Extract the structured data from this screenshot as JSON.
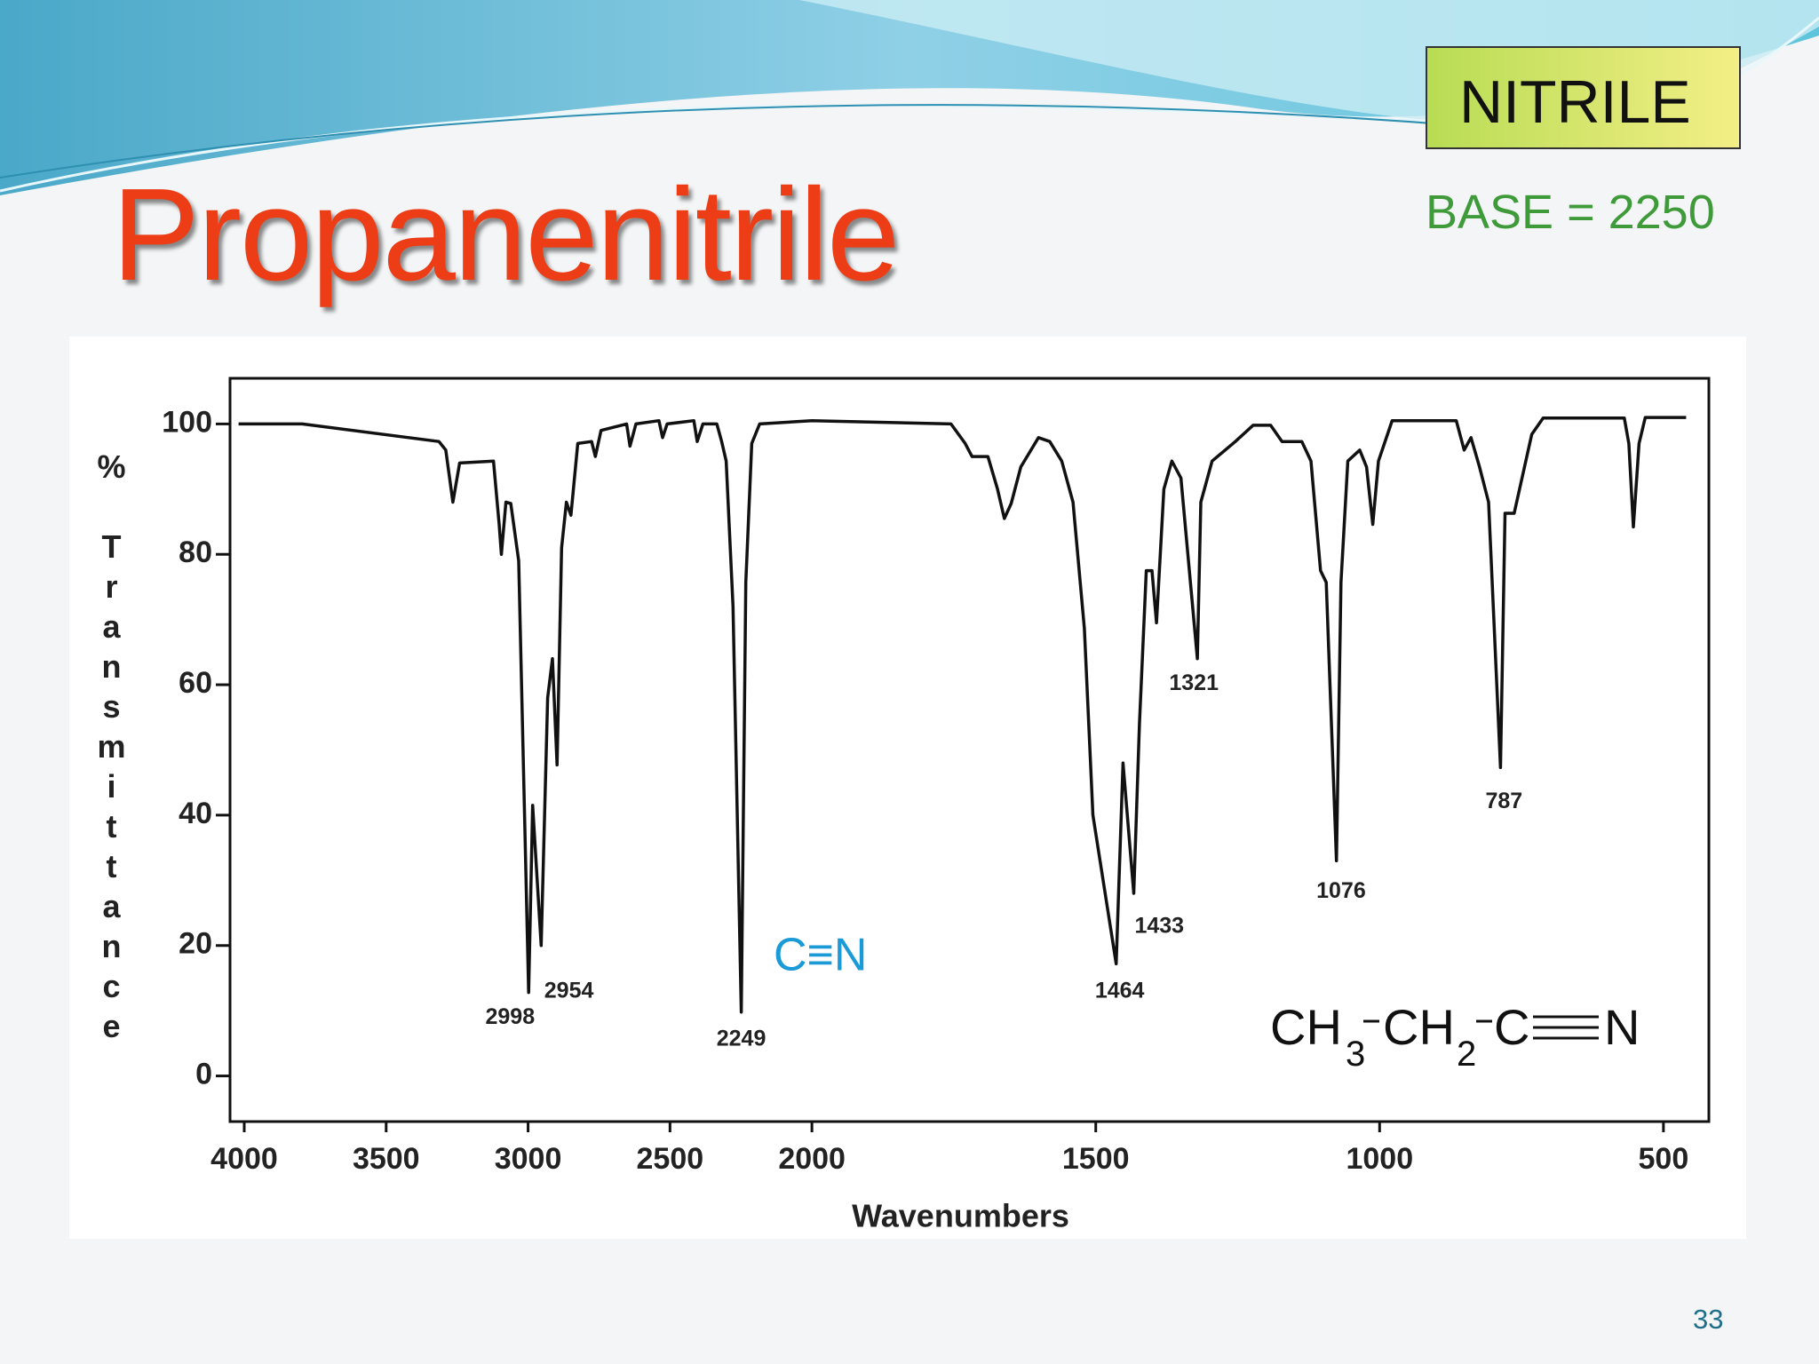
{
  "slide": {
    "title": "Propanenitrile",
    "badge": "NITRILE",
    "base": "BASE = 2250",
    "page": "33",
    "bond_note": "C≡N",
    "formula": [
      "CH",
      "3",
      "CH",
      "2",
      "C",
      "N"
    ]
  },
  "chart_data": {
    "type": "line",
    "x_label": "Wavenumbers",
    "y_label": "% Transmittance",
    "xlim": [
      4050,
      420
    ],
    "x_scale_break": 2000,
    "xticks": [
      4000,
      3500,
      3000,
      2500,
      2000,
      1500,
      1000,
      500
    ],
    "ylim": [
      -7,
      107
    ],
    "yticks": [
      0,
      20,
      40,
      60,
      80,
      100
    ],
    "color": "#111111",
    "x": [
      4020,
      3796,
      3314,
      3290,
      3265,
      3241,
      3122,
      3102,
      3094,
      3078,
      3061,
      3033,
      2998,
      2984,
      2954,
      2931,
      2914,
      2898,
      2882,
      2865,
      2849,
      2825,
      2776,
      2763,
      2743,
      2653,
      2641,
      2620,
      2539,
      2526,
      2510,
      2416,
      2404,
      2384,
      2335,
      2318,
      2302,
      2278,
      2249,
      2233,
      2212,
      2184,
      2000,
      1755,
      1730,
      1718,
      1690,
      1673,
      1661,
      1649,
      1632,
      1601,
      1581,
      1560,
      1540,
      1520,
      1505,
      1464,
      1452,
      1433,
      1423,
      1411,
      1401,
      1393,
      1380,
      1366,
      1350,
      1321,
      1315,
      1295,
      1254,
      1223,
      1192,
      1172,
      1137,
      1121,
      1104,
      1094,
      1076,
      1068,
      1056,
      1035,
      1023,
      1012,
      1002,
      978,
      865,
      851,
      839,
      824,
      808,
      787,
      779,
      763,
      732,
      712,
      569,
      561,
      553,
      543,
      532,
      460
    ],
    "values": [
      100,
      100,
      97.3,
      96,
      88,
      94,
      94.3,
      84.6,
      80,
      88,
      87.8,
      79,
      12.8,
      41.5,
      20,
      58,
      64,
      47.7,
      81,
      88,
      86,
      97,
      97.3,
      95,
      99,
      100,
      96.6,
      100,
      100.5,
      97.9,
      100,
      100.5,
      97.3,
      100,
      100,
      97.3,
      94.3,
      72,
      9.8,
      75.7,
      97,
      100,
      100.5,
      100,
      97,
      95,
      95,
      90,
      85.5,
      87.8,
      93.4,
      97.9,
      97.3,
      94.3,
      88,
      68.6,
      40,
      17.2,
      48,
      28,
      54,
      77.5,
      77.5,
      69.5,
      90,
      94.3,
      91.7,
      64,
      88,
      94.3,
      97.3,
      99.8,
      99.8,
      97.3,
      97.3,
      94.3,
      77.5,
      75.7,
      33,
      75.7,
      94.3,
      96,
      93.4,
      84.6,
      94.3,
      100.5,
      100.5,
      96,
      97.9,
      93.4,
      88,
      47.3,
      86.3,
      86.3,
      98.4,
      100.9,
      100.9,
      97,
      84.2,
      97,
      101,
      101
    ],
    "peaks": [
      2998,
      2954,
      2249,
      1464,
      1433,
      1321,
      1076,
      787
    ]
  }
}
